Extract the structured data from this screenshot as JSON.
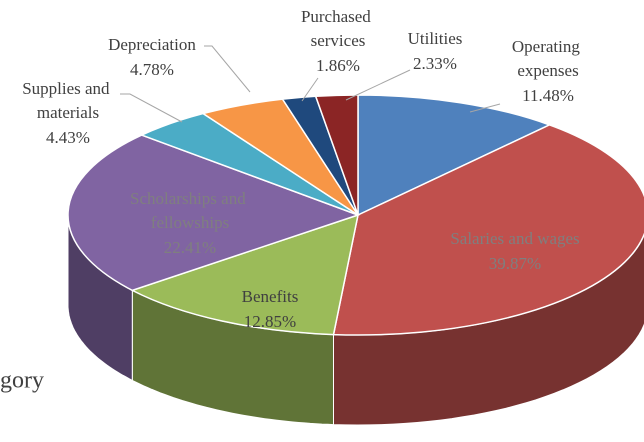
{
  "chart_data": {
    "type": "pie3d",
    "categories": [
      "Operating expenses",
      "Salaries and wages",
      "Benefits",
      "Scholarships and fellowships",
      "Supplies and materials",
      "Depreciation",
      "Purchased services",
      "Utilities"
    ],
    "values": [
      11.48,
      39.87,
      12.85,
      22.41,
      4.43,
      4.78,
      1.86,
      2.33
    ],
    "value_labels": [
      "11.48%",
      "39.87%",
      "12.85%",
      "22.41%",
      "4.43%",
      "4.78%",
      "1.86%",
      "2.33%"
    ],
    "colors": [
      "#4f81bd",
      "#c0504d",
      "#9bbb59",
      "#8064a2",
      "#4bacc6",
      "#f79646",
      "#1f497d",
      "#8b2525"
    ],
    "legend_title_fragment": "gory"
  }
}
